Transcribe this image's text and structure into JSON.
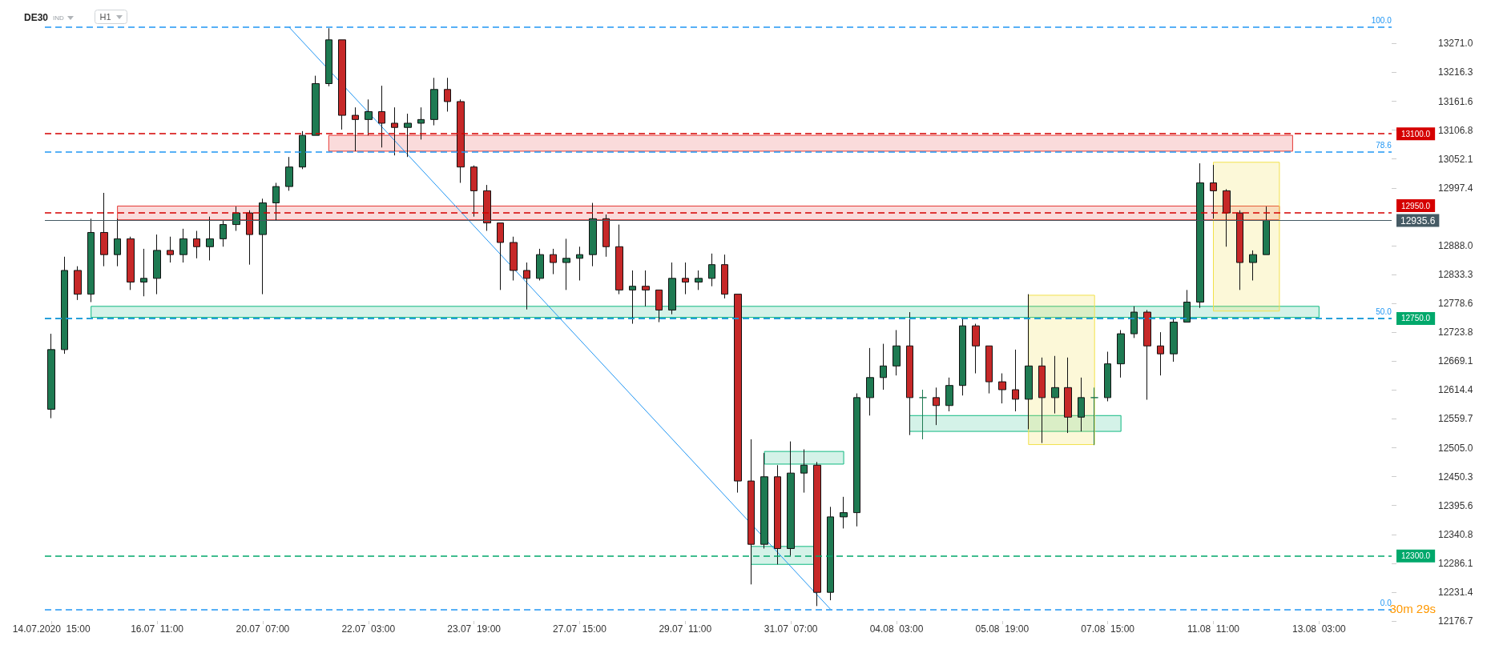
{
  "chart_data": {
    "type": "candlestick",
    "title": "DE30",
    "subtitle": "IND",
    "annotations": [
      "H1",
      "30m 29s",
      {
        "text": "100.0",
        "y": 13302
      },
      {
        "text": "78.6",
        "y": 13066
      },
      {
        "text": "50.0",
        "y": 12750.5
      },
      {
        "text": "0.0",
        "y": 12199
      }
    ],
    "categories": [
      "14.07.2020  15:00",
      null,
      null,
      null,
      null,
      null,
      null,
      null,
      "16.07  11:00",
      null,
      null,
      null,
      null,
      null,
      null,
      null,
      "20.07  07:00",
      null,
      null,
      null,
      null,
      null,
      null,
      null,
      "22.07  03:00",
      null,
      null,
      null,
      null,
      null,
      null,
      null,
      "23.07  19:00",
      null,
      null,
      null,
      null,
      null,
      null,
      null,
      "27.07  15:00",
      null,
      null,
      null,
      null,
      null,
      null,
      null,
      "29.07  11:00",
      null,
      null,
      null,
      null,
      null,
      null,
      null,
      "31.07  07:00",
      null,
      null,
      null,
      null,
      null,
      null,
      null,
      "04.08  03:00",
      null,
      null,
      null,
      null,
      null,
      null,
      null,
      "05.08  19:00",
      null,
      null,
      null,
      null,
      null,
      null,
      null,
      "07.08  15:00",
      null,
      null,
      null,
      null,
      null,
      null,
      null,
      "11.08  11:00",
      null,
      null,
      null,
      null,
      null,
      null,
      null,
      "13.08  03:00",
      null,
      null,
      null,
      null,
      null
    ],
    "colors": [
      "#1e7a52",
      "#1e7a52",
      "#c62828",
      "#1e7a52",
      "#c62828",
      "#1e7a52",
      "#c62828",
      "#1e7a52",
      "#1e7a52",
      "#c62828",
      "#1e7a52",
      "#c62828",
      "#1e7a52",
      "#1e7a52",
      "#1e7a52",
      "#c62828",
      "#1e7a52",
      "#1e7a52",
      "#1e7a52",
      "#1e7a52",
      "#1e7a52",
      "#1e7a52",
      "#c62828",
      "#c62828",
      "#1e7a52",
      "#c62828",
      "#c62828",
      "#1e7a52",
      "#1e7a52",
      "#1e7a52",
      "#c62828",
      "#c62828",
      "#c62828",
      "#c62828",
      "#c62828",
      "#c62828",
      "#c62828",
      "#1e7a52",
      "#c62828",
      "#1e7a52",
      "#1e7a52",
      "#1e7a52",
      "#c62828",
      "#c62828",
      "#1e7a52",
      "#c62828",
      "#c62828",
      "#1e7a52",
      "#c62828",
      "#1e7a52",
      "#1e7a52",
      "#c62828",
      "#c62828",
      "#c62828",
      "#1e7a52",
      "#c62828",
      "#1e7a52",
      "#1e7a52",
      "#c62828",
      "#1e7a52",
      "#1e7a52",
      "#1e7a52",
      "#1e7a52",
      "#1e7a52",
      "#1e7a52",
      "#c62828",
      "#1e7a52",
      "#c62828",
      "#1e7a52",
      "#1e7a52",
      "#c62828",
      "#c62828",
      "#c62828",
      "#c62828",
      "#1e7a52",
      "#c62828",
      "#1e7a52",
      "#c62828",
      "#1e7a52",
      "#1e7a52",
      "#1e7a52",
      "#1e7a52",
      "#1e7a52",
      "#c62828",
      "#c62828",
      "#1e7a52",
      "#1e7a52",
      "#1e7a52",
      "#c62828",
      "#c62828",
      "#c62828",
      "#1e7a52",
      "#1e7a52",
      null,
      null,
      null,
      null,
      null,
      null,
      null,
      null,
      null
    ],
    "ohlc": [
      [
        12578,
        12721,
        12561,
        12691
      ],
      [
        12691,
        12867,
        12683,
        12841
      ],
      [
        12841,
        12849,
        12785,
        12796
      ],
      [
        12796,
        12939,
        12781,
        12913
      ],
      [
        12913,
        12988,
        12849,
        12871
      ],
      [
        12871,
        12939,
        12849,
        12901
      ],
      [
        12901,
        12905,
        12804,
        12819
      ],
      [
        12819,
        12882,
        12792,
        12826
      ],
      [
        12826,
        12909,
        12796,
        12879
      ],
      [
        12879,
        12905,
        12856,
        12871
      ],
      [
        12871,
        12920,
        12856,
        12901
      ],
      [
        12901,
        12916,
        12864,
        12886
      ],
      [
        12886,
        12943,
        12860,
        12901
      ],
      [
        12901,
        12935,
        12886,
        12928
      ],
      [
        12928,
        12962,
        12916,
        12950
      ],
      [
        12950,
        12955,
        12852,
        12909
      ],
      [
        12909,
        12977,
        12796,
        12969
      ],
      [
        12969,
        13007,
        12935,
        13000
      ],
      [
        13000,
        13056,
        12992,
        13037
      ],
      [
        13037,
        13105,
        13033,
        13097
      ],
      [
        13097,
        13210,
        13097,
        13195
      ],
      [
        13195,
        13300,
        13190,
        13278
      ],
      [
        13278,
        13278,
        13108,
        13135
      ],
      [
        13135,
        13150,
        13067,
        13127
      ],
      [
        13127,
        13165,
        13097,
        13142
      ],
      [
        13142,
        13191,
        13074,
        13120
      ],
      [
        13120,
        13150,
        13059,
        13112
      ],
      [
        13112,
        13138,
        13056,
        13120
      ],
      [
        13120,
        13150,
        13089,
        13127
      ],
      [
        13127,
        13206,
        13116,
        13184
      ],
      [
        13184,
        13206,
        13142,
        13161
      ],
      [
        13161,
        13165,
        13007,
        13037
      ],
      [
        13037,
        13040,
        12943,
        12992
      ],
      [
        12992,
        13003,
        12916,
        12931
      ],
      [
        12931,
        12931,
        12804,
        12894
      ],
      [
        12894,
        12905,
        12822,
        12841
      ],
      [
        12841,
        12856,
        12767,
        12826
      ],
      [
        12826,
        12882,
        12822,
        12871
      ],
      [
        12871,
        12882,
        12834,
        12856
      ],
      [
        12856,
        12901,
        12804,
        12864
      ],
      [
        12864,
        12886,
        12822,
        12871
      ],
      [
        12871,
        12969,
        12849,
        12939
      ],
      [
        12939,
        12947,
        12867,
        12886
      ],
      [
        12886,
        12928,
        12796,
        12804
      ],
      [
        12804,
        12841,
        12740,
        12811
      ],
      [
        12811,
        12841,
        12773,
        12804
      ],
      [
        12804,
        12804,
        12743,
        12766
      ],
      [
        12766,
        12856,
        12758,
        12826
      ],
      [
        12826,
        12856,
        12796,
        12819
      ],
      [
        12819,
        12841,
        12804,
        12826
      ],
      [
        12826,
        12873,
        12811,
        12852
      ],
      [
        12852,
        12871,
        12788,
        12796
      ],
      [
        12796,
        12796,
        12420,
        12442
      ],
      [
        12442,
        12521,
        12246,
        12322
      ],
      [
        12322,
        12495,
        12314,
        12450
      ],
      [
        12450,
        12472,
        12284,
        12314
      ],
      [
        12314,
        12517,
        12299,
        12457
      ],
      [
        12457,
        12502,
        12420,
        12472
      ],
      [
        12472,
        12478,
        12205,
        12231
      ],
      [
        12231,
        12393,
        12216,
        12374
      ],
      [
        12374,
        12412,
        12352,
        12382
      ],
      [
        12382,
        12608,
        12356,
        12600
      ],
      [
        12600,
        12694,
        12566,
        12638
      ],
      [
        12638,
        12702,
        12615,
        12660
      ],
      [
        12660,
        12728,
        12642,
        12698
      ],
      [
        12698,
        12762,
        12529,
        12600
      ],
      [
        12600,
        12615,
        12521,
        12600
      ],
      [
        12600,
        12619,
        12548,
        12585
      ],
      [
        12585,
        12638,
        12574,
        12623
      ],
      [
        12623,
        12751,
        12604,
        12736
      ],
      [
        12736,
        12740,
        12646,
        12698
      ],
      [
        12698,
        12698,
        12608,
        12630
      ],
      [
        12630,
        12646,
        12589,
        12615
      ],
      [
        12615,
        12691,
        12574,
        12597
      ],
      [
        12597,
        12796,
        12540,
        12660
      ],
      [
        12660,
        12676,
        12514,
        12600
      ],
      [
        12600,
        12679,
        12570,
        12619
      ],
      [
        12619,
        12676,
        12533,
        12563
      ],
      [
        12563,
        12638,
        12536,
        12600
      ],
      [
        12600,
        12619,
        12510,
        12600
      ],
      [
        12600,
        12687,
        12593,
        12664
      ],
      [
        12664,
        12728,
        12638,
        12721
      ],
      [
        12721,
        12773,
        12713,
        12762
      ],
      [
        12762,
        12766,
        12596,
        12698
      ],
      [
        12698,
        12724,
        12642,
        12683
      ],
      [
        12683,
        12751,
        12668,
        12743
      ],
      [
        12743,
        12804,
        12743,
        12781
      ],
      [
        12781,
        13044,
        12770,
        13007
      ],
      [
        13007,
        13041,
        12939,
        12992
      ],
      [
        12992,
        12995,
        12886,
        12950
      ],
      [
        12950,
        12955,
        12804,
        12856
      ],
      [
        12856,
        12879,
        12822,
        12871
      ],
      [
        12871,
        12962,
        12871,
        12935.6
      ],
      null,
      null,
      null,
      null,
      null,
      null,
      null,
      null,
      null
    ],
    "series": [
      {
        "type": "line",
        "color": "#2196f3",
        "values": [
          null,
          null,
          null,
          null,
          null,
          null,
          null,
          null,
          null,
          null,
          null,
          null,
          null,
          null,
          null,
          null,
          null,
          null,
          13302,
          null,
          null,
          null,
          null,
          null,
          null,
          null,
          null,
          null,
          null,
          null,
          null,
          null,
          null,
          null,
          null,
          null,
          null,
          null,
          null,
          null,
          null,
          null,
          null,
          null,
          null,
          null,
          null,
          null,
          null,
          null,
          null,
          null,
          null,
          null,
          null,
          null,
          null,
          null,
          null,
          12199,
          null,
          null,
          null,
          null,
          null,
          null,
          null,
          null,
          null,
          null,
          null,
          null,
          null,
          null,
          null,
          null,
          null,
          null,
          null,
          null,
          null,
          null,
          null,
          null,
          null,
          null,
          null,
          null,
          null,
          null,
          null,
          null,
          null,
          null,
          null,
          null,
          null,
          null,
          null,
          null,
          null,
          null
        ]
      }
    ],
    "ylim": [
      12176.7,
      13308
    ],
    "yticks": [
      {
        "value": 13271.0,
        "label": "13271.0"
      },
      {
        "value": 13216.3,
        "label": "13216.3"
      },
      {
        "value": 13161.6,
        "label": "13161.6"
      },
      {
        "value": 13106.8,
        "label": "13106.8"
      },
      {
        "value": 13052.1,
        "label": "13052.1"
      },
      {
        "value": 12997.4,
        "label": "12997.4"
      },
      {
        "value": 12888.0,
        "label": "12888.0"
      },
      {
        "value": 12833.3,
        "label": "12833.3"
      },
      {
        "value": 12778.6,
        "label": "12778.6"
      },
      {
        "value": 12723.8,
        "label": "12723.8"
      },
      {
        "value": 12669.1,
        "label": "12669.1"
      },
      {
        "value": 12614.4,
        "label": "12614.4"
      },
      {
        "value": 12559.7,
        "label": "12559.7"
      },
      {
        "value": 12505.0,
        "label": "12505.0"
      },
      {
        "value": 12450.3,
        "label": "12450.3"
      },
      {
        "value": 12395.6,
        "label": "12395.6"
      },
      {
        "value": 12340.8,
        "label": "12340.8"
      },
      {
        "value": 12286.1,
        "label": "12286.1"
      },
      {
        "value": 12231.4,
        "label": "12231.4"
      },
      {
        "value": 12176.7,
        "label": "12176.7"
      }
    ],
    "ref_lines": [
      {
        "axis": "y",
        "value": 13100,
        "label": "13100.0",
        "color": "#d50000",
        "line_style": "dashed"
      },
      {
        "axis": "y",
        "value": 12950,
        "label": "12950.0",
        "color": "#d50000",
        "line_style": "dashed"
      },
      {
        "axis": "y",
        "value": 12750,
        "label": "12750.0",
        "color": "#00a86b",
        "line_style": "dashed"
      },
      {
        "axis": "y",
        "value": 12300,
        "label": "12300.0",
        "color": "#00a86b",
        "line_style": "dashed"
      },
      {
        "axis": "y",
        "value": 12935.6,
        "label": "12935.6",
        "color": "#455a64",
        "line_style": "solid"
      },
      {
        "axis": "y",
        "value": 13302,
        "color": "#2196f3",
        "line_style": "dashed"
      },
      {
        "axis": "y",
        "value": 13066,
        "color": "#2196f3",
        "line_style": "dashed"
      },
      {
        "axis": "y",
        "value": 12750.5,
        "color": "#2196f3",
        "line_style": "dashed"
      },
      {
        "axis": "y",
        "value": 12199,
        "color": "#2196f3",
        "line_style": "dashed"
      }
    ],
    "bands": [
      {
        "axis": "y",
        "from": 13067,
        "to": 13097,
        "color": "#e53935"
      },
      {
        "axis": "y",
        "from": 12937,
        "to": 12963,
        "color": "#e53935"
      },
      {
        "axis": "y",
        "from": 12752,
        "to": 12773,
        "color": "#10b981"
      },
      {
        "axis": "y",
        "from": 12474,
        "to": 12498,
        "color": "#10b981"
      },
      {
        "axis": "y",
        "from": 12284,
        "to": 12318,
        "color": "#10b981"
      },
      {
        "axis": "y",
        "from": 12536,
        "to": 12566,
        "color": "#10b981"
      },
      {
        "axis": "y",
        "from": 12511,
        "to": 12794,
        "color": "#f2e14c"
      },
      {
        "axis": "y",
        "from": 12764,
        "to": 13046,
        "color": "#f2e14c"
      }
    ]
  }
}
